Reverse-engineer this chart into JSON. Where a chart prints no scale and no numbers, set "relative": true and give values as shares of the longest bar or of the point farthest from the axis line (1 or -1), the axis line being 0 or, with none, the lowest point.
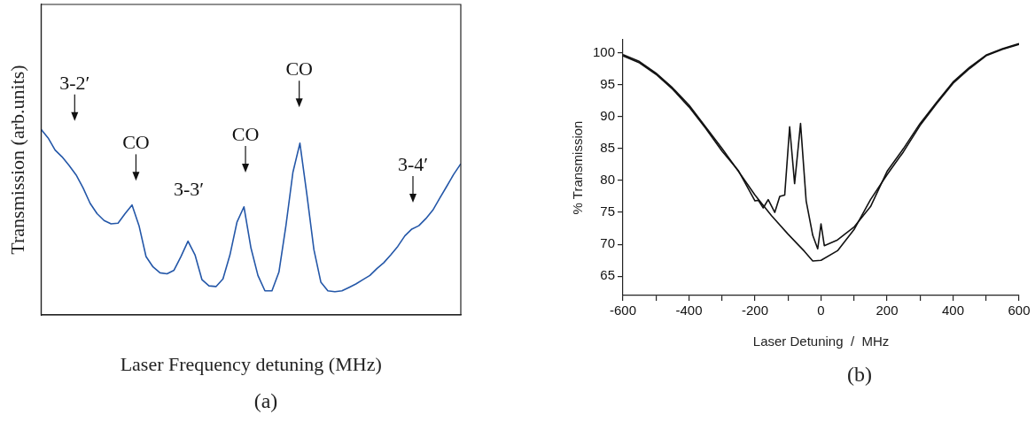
{
  "chart_data": [
    {
      "type": "line",
      "relative": true,
      "xlabel": "Laser Frequency detuning (MHz)",
      "ylabel": "Transmission (arb.units)",
      "categories": [
        null,
        null,
        null,
        null,
        null,
        null,
        null,
        null,
        null,
        null,
        null,
        null,
        null,
        null,
        null,
        null,
        null,
        null,
        null,
        null,
        null,
        null,
        null,
        null,
        null,
        null,
        null,
        null,
        null,
        null,
        null,
        null,
        null,
        null,
        null,
        null,
        null,
        null,
        null,
        null,
        null,
        null,
        null,
        null,
        null,
        null,
        null,
        null,
        null,
        null,
        null,
        null,
        null,
        null,
        null,
        null,
        null,
        null,
        null,
        null,
        null
      ],
      "series": [
        {
          "color": "#2457a8",
          "values": [
            1,
            0.954,
            0.889,
            0.852,
            0.806,
            0.755,
            0.685,
            0.602,
            0.546,
            0.509,
            0.491,
            0.495,
            0.546,
            0.593,
            0.481,
            0.315,
            0.259,
            0.227,
            0.222,
            0.241,
            0.315,
            0.398,
            0.324,
            0.19,
            0.157,
            0.153,
            0.194,
            0.324,
            0.5,
            0.583,
            0.361,
            0.213,
            0.13,
            0.13,
            0.231,
            0.481,
            0.769,
            0.926,
            0.648,
            0.352,
            0.176,
            0.13,
            0.125,
            0.13,
            0.148,
            0.167,
            0.19,
            0.213,
            0.25,
            0.282,
            0.324,
            0.37,
            0.426,
            0.463,
            0.481,
            0.519,
            0.565,
            0.63,
            0.694,
            0.759,
            0.815
          ]
        }
      ],
      "annotations": [
        "3-2′",
        "CO",
        "3-3′",
        "CO",
        "CO",
        "3-4′",
        "(a)"
      ]
    },
    {
      "type": "line",
      "xlabel": "Laser Detuning  /  MHz",
      "ylabel": "% Transmission",
      "xlim": [
        -600,
        600
      ],
      "ylim": [
        62,
        102
      ],
      "xticks": [
        -600,
        {
          "value": -500,
          "label": null
        },
        -400,
        {
          "value": -300,
          "label": null
        },
        -200,
        {
          "value": -100,
          "label": null
        },
        0,
        {
          "value": 100,
          "label": null
        },
        200,
        {
          "value": 300,
          "label": null
        },
        400,
        {
          "value": 500,
          "label": null
        },
        600
      ],
      "yticks": [
        65,
        70,
        75,
        80,
        85,
        90,
        95,
        100
      ],
      "series": [
        {
          "color": "#111111",
          "x": [
            -600,
            -550,
            -500,
            -450,
            -400,
            -350,
            -300,
            -250,
            -200,
            -150,
            -100,
            -50,
            -25,
            0,
            50,
            100,
            150,
            200,
            250,
            300,
            350,
            400,
            450,
            500,
            550,
            600
          ],
          "values": [
            99.7,
            98.6,
            96.8,
            94.5,
            91.8,
            88.4,
            85.0,
            81.4,
            77.7,
            74.5,
            71.6,
            68.9,
            67.4,
            67.5,
            69.0,
            72.3,
            77.0,
            80.9,
            84.5,
            88.6,
            92.0,
            95.2,
            97.5,
            99.5,
            100.5,
            101.3
          ]
        },
        {
          "color": "#111111",
          "x": [
            -600,
            -550,
            -500,
            -450,
            -400,
            -350,
            -300,
            -250,
            -200,
            -190,
            -175,
            -160,
            -140,
            -125,
            -110,
            -95,
            -80,
            -62,
            -45,
            -25,
            -10,
            0,
            10,
            50,
            100,
            150,
            200,
            250,
            300,
            350,
            400,
            450,
            500,
            550,
            600
          ],
          "values": [
            99.5,
            98.4,
            96.6,
            94.3,
            91.5,
            88.2,
            84.6,
            81.5,
            76.8,
            76.9,
            75.7,
            77.0,
            75.0,
            77.5,
            77.7,
            88.4,
            79.5,
            88.9,
            76.8,
            71.4,
            69.3,
            73.2,
            69.8,
            70.7,
            72.7,
            75.9,
            81.4,
            85.0,
            88.9,
            92.2,
            95.4,
            97.7,
            99.6,
            100.6,
            101.4
          ]
        }
      ],
      "annotations": [
        "(b)"
      ]
    }
  ]
}
